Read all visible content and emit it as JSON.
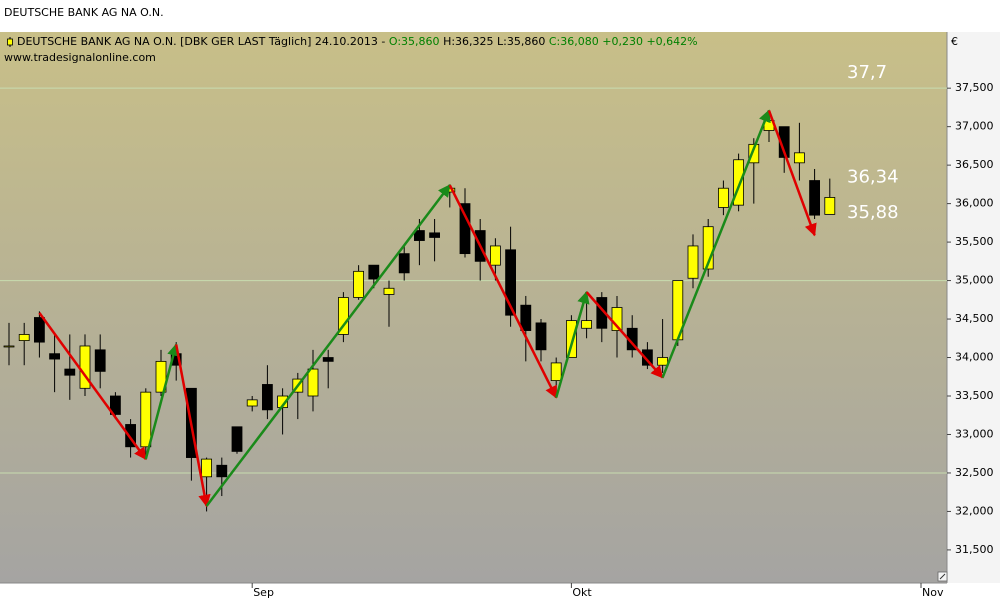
{
  "chart_data": {
    "type": "candlestick",
    "title": "DEUTSCHE BANK AG NA O.N.",
    "legend": {
      "name": "DEUTSCHE BANK AG NA O.N. [DBK GER LAST Täglich] 24.10.2013 -",
      "open": "O:35,860",
      "high": "H:36,325",
      "low": "L:35,860",
      "close": "C:36,080",
      "change": "+0,230",
      "change_pct": "+0,642%"
    },
    "source": "www.tradesignalonline.com",
    "unit": "€",
    "categories": [
      null,
      null,
      null,
      null,
      null,
      null,
      null,
      null,
      null,
      null,
      null,
      null,
      null,
      null,
      null,
      null,
      "Sep",
      null,
      null,
      null,
      null,
      null,
      null,
      null,
      null,
      null,
      null,
      null,
      null,
      null,
      null,
      null,
      null,
      null,
      null,
      null,
      null,
      "Okt",
      null,
      null,
      null,
      null,
      null,
      null,
      null,
      null,
      null,
      null,
      null,
      null,
      null,
      null,
      null,
      null,
      null,
      null,
      null,
      null,
      null,
      null,
      "Nov"
    ],
    "open": [
      34.15,
      34.22,
      34.52,
      34.05,
      33.85,
      33.6,
      34.1,
      33.5,
      33.13,
      32.84,
      33.55,
      34.05,
      33.6,
      32.45,
      32.6,
      33.1,
      33.37,
      33.65,
      33.35,
      33.55,
      33.5,
      34.0,
      34.3,
      34.78,
      35.2,
      34.82,
      35.35,
      35.65,
      35.62,
      36.15,
      36.0,
      35.65,
      35.2,
      35.4,
      34.68,
      34.45,
      33.7,
      34.0,
      34.38,
      34.78,
      34.35,
      34.38,
      34.1,
      33.9,
      34.23,
      35.03,
      35.15,
      35.95,
      35.98,
      36.53,
      36.95,
      37.0,
      36.53,
      36.3,
      35.86,
      null,
      null,
      null,
      null,
      null,
      null
    ],
    "high": [
      34.45,
      34.45,
      34.6,
      34.3,
      34.3,
      34.3,
      34.3,
      33.55,
      33.2,
      33.6,
      34.1,
      34.2,
      33.6,
      32.7,
      32.7,
      33.1,
      33.5,
      33.9,
      33.6,
      33.8,
      34.1,
      34.1,
      34.85,
      35.2,
      35.2,
      35.0,
      35.45,
      35.8,
      35.8,
      36.25,
      36.2,
      35.8,
      35.55,
      35.7,
      34.8,
      34.5,
      34.0,
      34.55,
      34.8,
      34.85,
      34.8,
      34.55,
      34.2,
      34.5,
      35.0,
      35.6,
      35.8,
      36.3,
      36.65,
      36.85,
      37.2,
      37.0,
      37.05,
      36.45,
      36.325,
      null,
      null,
      null,
      null,
      null,
      null
    ],
    "low": [
      33.9,
      33.9,
      34.0,
      33.55,
      33.45,
      33.5,
      33.6,
      33.2,
      32.7,
      32.7,
      33.5,
      33.7,
      32.4,
      32.0,
      32.2,
      32.75,
      33.3,
      33.2,
      33.0,
      33.2,
      33.3,
      33.6,
      34.2,
      34.75,
      34.9,
      34.4,
      35.0,
      35.2,
      35.25,
      35.95,
      35.3,
      35.0,
      35.0,
      34.4,
      33.95,
      33.95,
      33.5,
      34.0,
      34.25,
      34.2,
      34.0,
      34.0,
      33.85,
      33.8,
      34.15,
      34.9,
      35.05,
      35.85,
      35.9,
      36.0,
      36.8,
      36.4,
      36.3,
      35.8,
      35.86,
      null,
      null,
      null,
      null,
      null,
      null
    ],
    "close": [
      34.15,
      34.3,
      34.2,
      33.98,
      33.77,
      34.15,
      33.82,
      33.26,
      32.84,
      33.55,
      33.95,
      33.9,
      32.7,
      32.68,
      32.45,
      32.78,
      33.45,
      33.32,
      33.5,
      33.72,
      33.85,
      33.95,
      34.78,
      35.12,
      35.02,
      34.9,
      35.1,
      35.52,
      35.56,
      36.2,
      35.35,
      35.25,
      35.45,
      34.55,
      34.35,
      34.1,
      33.93,
      34.48,
      34.48,
      34.38,
      34.65,
      34.1,
      33.9,
      34.0,
      35.0,
      35.45,
      35.7,
      36.2,
      36.57,
      36.77,
      37.08,
      36.6,
      36.66,
      35.85,
      36.08,
      null,
      null,
      null,
      null,
      null,
      null
    ],
    "up_color": "#ffff00",
    "down_color": "#000000",
    "arrows": [
      {
        "color": "#e00000",
        "x": [
          2,
          9
        ],
        "y": [
          34.58,
          32.68
        ]
      },
      {
        "color": "#1a8a1a",
        "x": [
          9,
          11
        ],
        "y": [
          32.68,
          34.17
        ]
      },
      {
        "color": "#e00000",
        "x": [
          11,
          13
        ],
        "y": [
          34.17,
          32.07
        ]
      },
      {
        "color": "#1a8a1a",
        "x": [
          13,
          29
        ],
        "y": [
          32.07,
          36.24
        ]
      },
      {
        "color": "#e00000",
        "x": [
          29,
          36
        ],
        "y": [
          36.24,
          33.48
        ]
      },
      {
        "color": "#1a8a1a",
        "x": [
          36,
          38
        ],
        "y": [
          33.48,
          34.85
        ]
      },
      {
        "color": "#e00000",
        "x": [
          38,
          43
        ],
        "y": [
          34.85,
          33.74
        ]
      },
      {
        "color": "#1a8a1a",
        "x": [
          43,
          50
        ],
        "y": [
          33.74,
          37.21
        ]
      },
      {
        "color": "#e00000",
        "x": [
          50,
          53
        ],
        "y": [
          37.21,
          35.59
        ]
      }
    ],
    "annotations": [
      {
        "label": "37,7",
        "value": 37.7
      },
      {
        "label": "36,34",
        "value": 36.34
      },
      {
        "label": "35,88",
        "value": 35.88
      }
    ],
    "ylim": [
      31.07,
      38.23
    ],
    "yticks": [
      {
        "value": 31.5,
        "label": "31,500"
      },
      {
        "value": 32,
        "label": "32,000"
      },
      {
        "value": 32.5,
        "label": "32,500"
      },
      {
        "value": 33,
        "label": "33,000"
      },
      {
        "value": 33.5,
        "label": "33,500"
      },
      {
        "value": 34,
        "label": "34,000"
      },
      {
        "value": 34.5,
        "label": "34,500"
      },
      {
        "value": 35,
        "label": "35,000"
      },
      {
        "value": 35.5,
        "label": "35,500"
      },
      {
        "value": 36,
        "label": "36,000"
      },
      {
        "value": 36.5,
        "label": "36,500"
      },
      {
        "value": 37,
        "label": "37,000"
      },
      {
        "value": 37.5,
        "label": "37,500"
      }
    ],
    "gridlines": [
      32.5,
      35,
      37.5
    ],
    "grid_color": "#c8dcb0"
  }
}
